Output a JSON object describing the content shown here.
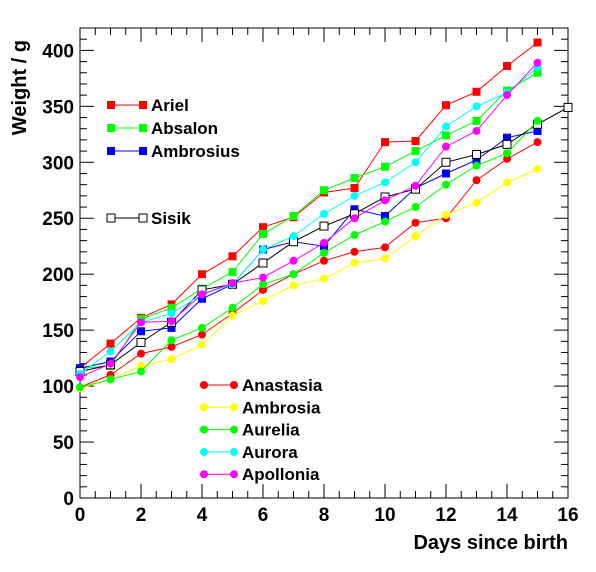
{
  "chart_data": {
    "type": "line",
    "title": "",
    "xlabel": "Days since birth",
    "ylabel": "Weight / g",
    "xlim": [
      0,
      16
    ],
    "ylim": [
      0,
      420
    ],
    "xticks": [
      0,
      2,
      4,
      6,
      8,
      10,
      12,
      14,
      16
    ],
    "yticks": [
      0,
      50,
      100,
      150,
      200,
      250,
      300,
      350,
      400
    ],
    "x_tick_labels": [
      "0",
      "2",
      "4",
      "6",
      "8",
      "10",
      "12",
      "14",
      "16"
    ],
    "y_tick_labels": [
      "0",
      "50",
      "100",
      "150",
      "200",
      "250",
      "300",
      "350",
      "400"
    ],
    "grid": false,
    "series": [
      {
        "name": "Ariel",
        "marker": "square-filled",
        "color": "#ff0000",
        "x": [
          0,
          1,
          2,
          3,
          4,
          5,
          6,
          7,
          8,
          9,
          10,
          11,
          12,
          13,
          14,
          15
        ],
        "values": [
          116,
          138,
          161,
          173,
          200,
          216,
          242,
          251,
          273,
          277,
          318,
          319,
          351,
          363,
          386,
          407
        ]
      },
      {
        "name": "Absalon",
        "marker": "square-filled",
        "color": "#00ff00",
        "x": [
          0,
          1,
          2,
          3,
          4,
          5,
          6,
          7,
          8,
          9,
          10,
          11,
          12,
          13,
          14,
          15
        ],
        "values": [
          116,
          118,
          160,
          170,
          187,
          202,
          236,
          252,
          275,
          286,
          296,
          310,
          324,
          337,
          364,
          380
        ]
      },
      {
        "name": "Ambrosius",
        "marker": "square-filled",
        "color": "#0000ff",
        "x": [
          0,
          1,
          2,
          3,
          4,
          5,
          6,
          7,
          8,
          9,
          10,
          11,
          12,
          13,
          14,
          15
        ],
        "values": [
          116,
          122,
          149,
          152,
          178,
          191,
          222,
          229,
          225,
          258,
          252,
          277,
          290,
          302,
          322,
          328
        ]
      },
      {
        "name": "Sisik",
        "marker": "square-open",
        "color": "#000000",
        "x": [
          0,
          1,
          2,
          3,
          4,
          5,
          6,
          7,
          8,
          9,
          10,
          11,
          12,
          13,
          14,
          15,
          16
        ],
        "values": [
          113,
          119,
          139,
          157,
          186,
          191,
          210,
          229,
          243,
          254,
          269,
          276,
          300,
          307,
          316,
          334,
          349
        ]
      },
      {
        "name": "Anastasia",
        "marker": "circle-filled",
        "color": "#ff0000",
        "x": [
          0,
          1,
          2,
          3,
          4,
          5,
          6,
          7,
          8,
          9,
          10,
          11,
          12,
          13,
          14,
          15
        ],
        "values": [
          99,
          110,
          129,
          135,
          146,
          165,
          186,
          200,
          212,
          220,
          224,
          246,
          250,
          284,
          303,
          318
        ]
      },
      {
        "name": "Ambrosia",
        "marker": "circle-filled",
        "color": "#ffff00",
        "x": [
          0,
          1,
          2,
          3,
          4,
          5,
          6,
          7,
          8,
          9,
          10,
          11,
          12,
          13,
          14,
          15
        ],
        "values": [
          98,
          106,
          118,
          124,
          137,
          163,
          176,
          190,
          196,
          210,
          214,
          234,
          253,
          264,
          282,
          294
        ]
      },
      {
        "name": "Aurelia",
        "marker": "circle-filled",
        "color": "#00ff00",
        "x": [
          0,
          1,
          2,
          3,
          4,
          5,
          6,
          7,
          8,
          9,
          10,
          11,
          12,
          13,
          14,
          15
        ],
        "values": [
          99,
          106,
          113,
          141,
          152,
          170,
          191,
          200,
          219,
          235,
          247,
          260,
          280,
          297,
          308,
          337
        ]
      },
      {
        "name": "Aurora",
        "marker": "circle-filled",
        "color": "#00ffff",
        "x": [
          0,
          1,
          2,
          3,
          4,
          5,
          6,
          7,
          8,
          9,
          10,
          11,
          12,
          13,
          14,
          15
        ],
        "values": [
          111,
          131,
          157,
          165,
          182,
          191,
          222,
          234,
          254,
          270,
          282,
          300,
          332,
          350,
          362,
          385
        ]
      },
      {
        "name": "Apollonia",
        "marker": "circle-filled",
        "color": "#ff00ff",
        "x": [
          0,
          1,
          2,
          3,
          4,
          5,
          6,
          7,
          8,
          9,
          10,
          11,
          12,
          13,
          14,
          15
        ],
        "values": [
          108,
          120,
          157,
          158,
          182,
          192,
          197,
          212,
          228,
          250,
          266,
          279,
          314,
          328,
          360,
          389
        ]
      }
    ],
    "legends": [
      {
        "placement": "upper-left",
        "entries": [
          "Ariel",
          "Absalon",
          "Ambrosius"
        ]
      },
      {
        "placement": "upper-left",
        "entries": [
          "Sisik"
        ]
      },
      {
        "placement": "lower-center",
        "entries": [
          "Anastasia",
          "Ambrosia",
          "Aurelia",
          "Aurora",
          "Apollonia"
        ]
      }
    ]
  }
}
